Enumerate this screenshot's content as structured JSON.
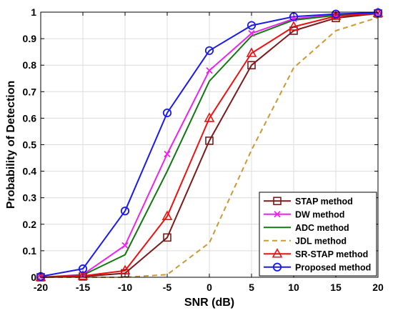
{
  "chart_data": {
    "type": "line",
    "title": "",
    "xlabel": "SNR (dB)",
    "ylabel": "Probability of Detection",
    "xlim": [
      -20,
      20
    ],
    "ylim": [
      0,
      1
    ],
    "x_ticks": [
      "-20",
      "-15",
      "-10",
      "-5",
      "0",
      "5",
      "10",
      "15",
      "20"
    ],
    "y_ticks": [
      "0",
      "0.1",
      "0.2",
      "0.3",
      "0.4",
      "0.5",
      "0.6",
      "0.7",
      "0.8",
      "0.9",
      "1"
    ],
    "grid": true,
    "legend_position": "bottom-right",
    "x": [
      -20,
      -15,
      -10,
      -5,
      0,
      5,
      10,
      15,
      20
    ],
    "series": [
      {
        "name": "STAP method",
        "color": "#7b1a1a",
        "marker": "square",
        "dash": "solid",
        "values": [
          0.0,
          0.003,
          0.015,
          0.15,
          0.515,
          0.8,
          0.93,
          0.978,
          0.995
        ]
      },
      {
        "name": "DW method",
        "color": "#ee22ee",
        "marker": "x",
        "dash": "solid",
        "values": [
          0.0,
          0.01,
          0.12,
          0.465,
          0.78,
          0.92,
          0.975,
          0.99,
          0.997
        ]
      },
      {
        "name": "ADC method",
        "color": "#117711",
        "marker": "none",
        "dash": "solid",
        "values": [
          0.0,
          0.008,
          0.085,
          0.4,
          0.74,
          0.91,
          0.97,
          0.988,
          0.996
        ]
      },
      {
        "name": "JDL method",
        "color": "#cc9933",
        "marker": "none",
        "dash": "dashed",
        "values": [
          0.0,
          0.0,
          0.0,
          0.01,
          0.13,
          0.48,
          0.79,
          0.93,
          0.98
        ]
      },
      {
        "name": "SR-STAP method",
        "color": "#ee1111",
        "marker": "triangle",
        "dash": "solid",
        "values": [
          0.0,
          0.005,
          0.025,
          0.23,
          0.6,
          0.845,
          0.945,
          0.985,
          0.996
        ]
      },
      {
        "name": "Proposed method",
        "color": "#1a1aee",
        "marker": "circle",
        "dash": "solid",
        "values": [
          0.003,
          0.032,
          0.25,
          0.62,
          0.855,
          0.95,
          0.983,
          0.993,
          0.998
        ]
      }
    ]
  }
}
